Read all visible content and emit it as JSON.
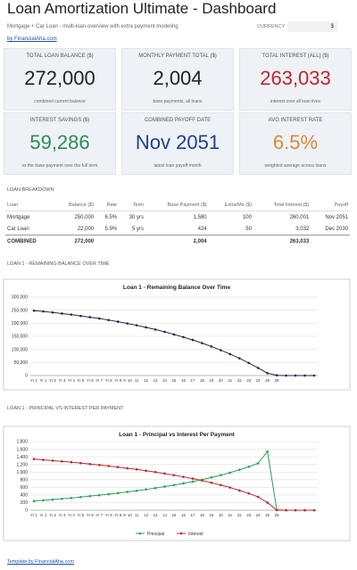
{
  "header": {
    "title": "Loan Amortization Ultimate - Dashboard",
    "subtitle": "Mortgage + Car Loan - multi-loan overview with extra payment modeling",
    "currency_label": "CURRENCY",
    "currency": "$",
    "link": "by FinancialAha.com"
  },
  "kpis": [
    {
      "label": "TOTAL LOAN BALANCE ($)",
      "value": "272,000",
      "caption": "combined current balance",
      "color": "#222222"
    },
    {
      "label": "MONTHLY PAYMENT TOTAL ($)",
      "value": "2,004",
      "caption": "base payments, all loans",
      "color": "#222222"
    },
    {
      "label": "TOTAL INTEREST (ALL) ($)",
      "value": "263,033",
      "caption": "interest over all loan lives",
      "color": "#c0262d"
    },
    {
      "label": "INTEREST SAVINGS ($)",
      "value": "59,286",
      "caption": "vs the base payment over the full term",
      "color": "#2e8b57"
    },
    {
      "label": "COMBINED PAYOFF DATE",
      "value": "Nov 2051",
      "caption": "latest loan payoff month",
      "color": "#1f3f8f"
    },
    {
      "label": "AVG INTEREST RATE",
      "value": "6.5%",
      "caption": "weighted average across loans",
      "color": "#d9893a"
    }
  ],
  "breakdown": {
    "title": "LOAN BREAKDOWN",
    "columns": [
      "Loan",
      "Balance ($)",
      "Rate",
      "Term",
      "Base Payment ($)",
      "Extra/Mo ($)",
      "Total Interest ($)",
      "Payoff"
    ],
    "rows": [
      [
        "Mortgage",
        "250,000",
        "6.5%",
        "30 yrs",
        "1,580",
        "100",
        "260,001",
        "Nov 2051"
      ],
      [
        "Car Loan",
        "22,000",
        "5.9%",
        "5 yrs",
        "424",
        "50",
        "3,032",
        "Dec 2030"
      ]
    ],
    "total": [
      "COMBINED",
      "272,000",
      null,
      null,
      "2,004",
      null,
      "263,033",
      null
    ]
  },
  "charts": [
    {
      "type": "line",
      "section": "LOAN 1 - REMAINING BALANCE OVER TIME",
      "title": "Loan 1 - Remaining Balance Over Time",
      "categories": [
        "Yr 1",
        "Yr 1",
        "Yr 2",
        "Yr 3",
        "Yr 4",
        "Yr 5",
        "Yr 6",
        "Yr 7",
        "Yr 8",
        "Yr 9",
        "Yr 10",
        "11",
        "12",
        "13",
        "14",
        "15",
        "16",
        "17",
        "18",
        "19",
        "20",
        "21",
        "22",
        "23",
        "24",
        "25",
        "26",
        null,
        null,
        null,
        null
      ],
      "series": [
        {
          "name": "Balance",
          "color": "#1f2a44",
          "values": [
            248000,
            245000,
            241000,
            237000,
            233000,
            228000,
            223000,
            218000,
            212000,
            206000,
            199000,
            192000,
            184000,
            176000,
            167000,
            157000,
            147000,
            136000,
            124000,
            111000,
            97000,
            82000,
            66000,
            48000,
            29000,
            9000,
            1000,
            0,
            0,
            0,
            0
          ]
        }
      ],
      "ylim": [
        0,
        300000
      ],
      "yticks": [
        0,
        {
          "value": 50000,
          "label": "50,000"
        },
        {
          "value": 100000,
          "label": "100,000"
        },
        {
          "value": 150000,
          "label": "150,000"
        },
        {
          "value": 200000,
          "label": "200,000"
        },
        {
          "value": 250000,
          "label": "250,000"
        },
        {
          "value": 300000,
          "label": "300,000"
        }
      ],
      "grid": true,
      "legend": false
    },
    {
      "type": "line",
      "section": "LOAN 1 - PRINCIPAL VS INTEREST PER PAYMENT",
      "title": "Loan 1 - Principal vs Interest Per Payment",
      "categories": [
        "Yr 1",
        "Yr 1",
        "Yr 2",
        "Yr 3",
        "Yr 4",
        "Yr 5",
        "Yr 6",
        "Yr 7",
        "Yr 8",
        "Yr 9",
        "Yr 10",
        "11",
        "12",
        "13",
        "14",
        "15",
        "16",
        "17",
        "18",
        "19",
        "20",
        "21",
        "22",
        "23",
        "24",
        "25",
        "26",
        null,
        null,
        null,
        null
      ],
      "series": [
        {
          "name": "Principal",
          "color": "#2e9e5b",
          "values": [
            240,
            260,
            280,
            300,
            320,
            345,
            370,
            395,
            420,
            450,
            480,
            510,
            545,
            580,
            620,
            660,
            705,
            750,
            800,
            860,
            920,
            985,
            1060,
            1140,
            1230,
            1540,
            10,
            0,
            0,
            0,
            0
          ]
        },
        {
          "name": "Interest",
          "color": "#c0262d",
          "values": [
            1340,
            1320,
            1300,
            1280,
            1260,
            1235,
            1210,
            1185,
            1160,
            1130,
            1100,
            1070,
            1035,
            1000,
            960,
            920,
            875,
            830,
            780,
            720,
            660,
            595,
            520,
            440,
            350,
            200,
            5,
            0,
            0,
            0,
            0
          ]
        }
      ],
      "ylim": [
        0,
        1800
      ],
      "yticks": [
        0,
        200,
        400,
        600,
        800,
        {
          "value": 1000,
          "label": "1,000"
        },
        {
          "value": 1200,
          "label": "1,200"
        },
        {
          "value": 1400,
          "label": "1,400"
        },
        {
          "value": 1600,
          "label": "1,600"
        },
        {
          "value": 1800,
          "label": "1,800"
        }
      ],
      "grid": true,
      "legend": "bottom"
    }
  ],
  "footer": "Template by FinancialAha.com"
}
